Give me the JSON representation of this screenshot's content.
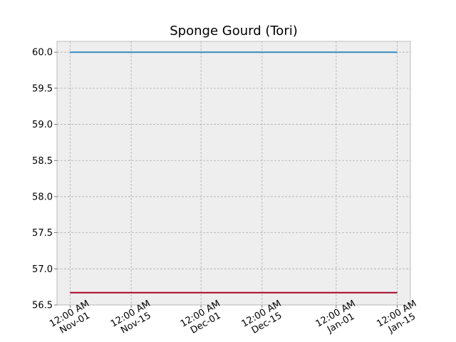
{
  "chart_data": {
    "type": "line",
    "title": "Sponge Gourd (Tori)",
    "xlabel": "",
    "ylabel": "",
    "x_axis_type": "date",
    "xlim": [
      "2023-10-29",
      "2024-01-18"
    ],
    "ylim": [
      56.5,
      60.15
    ],
    "grid": true,
    "x_ticks": [
      {
        "value": "2023-11-01",
        "label": [
          "12:00 AM",
          "Nov-01"
        ]
      },
      {
        "value": "2023-11-15",
        "label": [
          "12:00 AM",
          "Nov-15"
        ]
      },
      {
        "value": "2023-12-01",
        "label": [
          "12:00 AM",
          "Dec-01"
        ]
      },
      {
        "value": "2023-12-15",
        "label": [
          "12:00 AM",
          "Dec-15"
        ]
      },
      {
        "value": "2024-01-01",
        "label": [
          "12:00 AM",
          "Jan-01"
        ]
      },
      {
        "value": "2024-01-15",
        "label": [
          "12:00 AM",
          "Jan-15"
        ]
      }
    ],
    "y_ticks": [
      56.5,
      57.0,
      57.5,
      58.0,
      58.5,
      59.0,
      59.5,
      60.0
    ],
    "series": [
      {
        "color": "#348ABD",
        "x": [
          "2023-11-01",
          "2024-01-15"
        ],
        "y": [
          60.0,
          60.0
        ]
      },
      {
        "color": "#A60628",
        "x": [
          "2023-11-01",
          "2024-01-15"
        ],
        "y": [
          56.67,
          56.67
        ]
      }
    ]
  }
}
